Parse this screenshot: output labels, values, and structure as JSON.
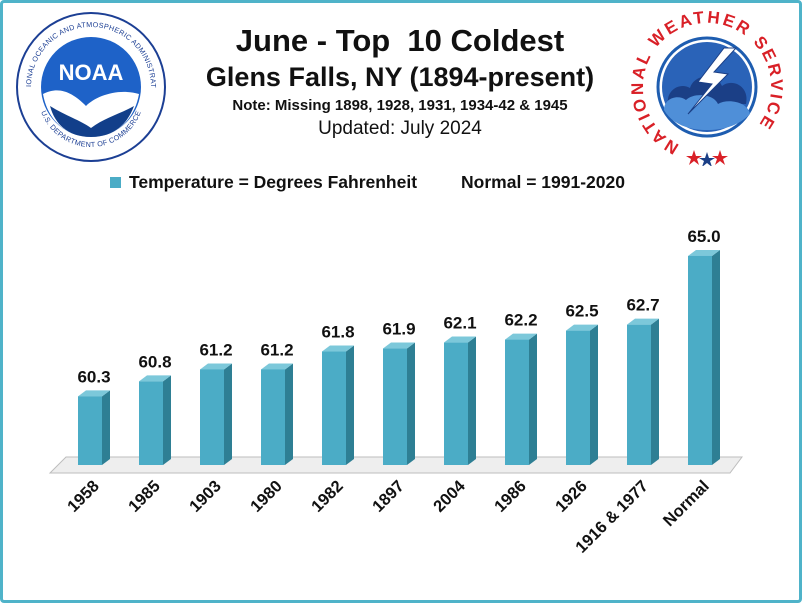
{
  "header": {
    "title": "June - Top  10 Coldest",
    "subtitle": "Glens Falls, NY (1894-present)",
    "note": "Note: Missing 1898, 1928, 1931, 1934-42 & 1945",
    "updated": "Updated: July 2024"
  },
  "legend": {
    "series": "Temperature = Degrees Fahrenheit",
    "normal_note": "Normal = 1991-2020"
  },
  "logos": {
    "noaa": {
      "center": "NOAA",
      "ring_top": "NATIONAL OCEANIC AND ATMOSPHERIC ADMINISTRATION",
      "ring_bottom": "U.S. DEPARTMENT OF COMMERCE"
    },
    "nws": {
      "ring": "NATIONAL WEATHER SERVICE"
    }
  },
  "colors": {
    "bar_front": "#4bacc6",
    "bar_side": "#2e7f94",
    "bar_top": "#7cc8da",
    "frame": "#4fb3c9"
  },
  "chart_data": {
    "type": "bar",
    "categories": [
      "1958",
      "1985",
      "1903",
      "1980",
      "1982",
      "1897",
      "2004",
      "1986",
      "1926",
      "1916 & 1977",
      "Normal"
    ],
    "values": [
      60.3,
      60.8,
      61.2,
      61.2,
      61.8,
      61.9,
      62.1,
      62.2,
      62.5,
      62.7,
      65.0
    ],
    "value_labels": [
      "60.3",
      "60.8",
      "61.2",
      "61.2",
      "61.8",
      "61.9",
      "62.1",
      "62.2",
      "62.5",
      "62.7",
      "65.0"
    ],
    "ylim": [
      58,
      65.3
    ],
    "grid": false,
    "legend_position": "top"
  }
}
